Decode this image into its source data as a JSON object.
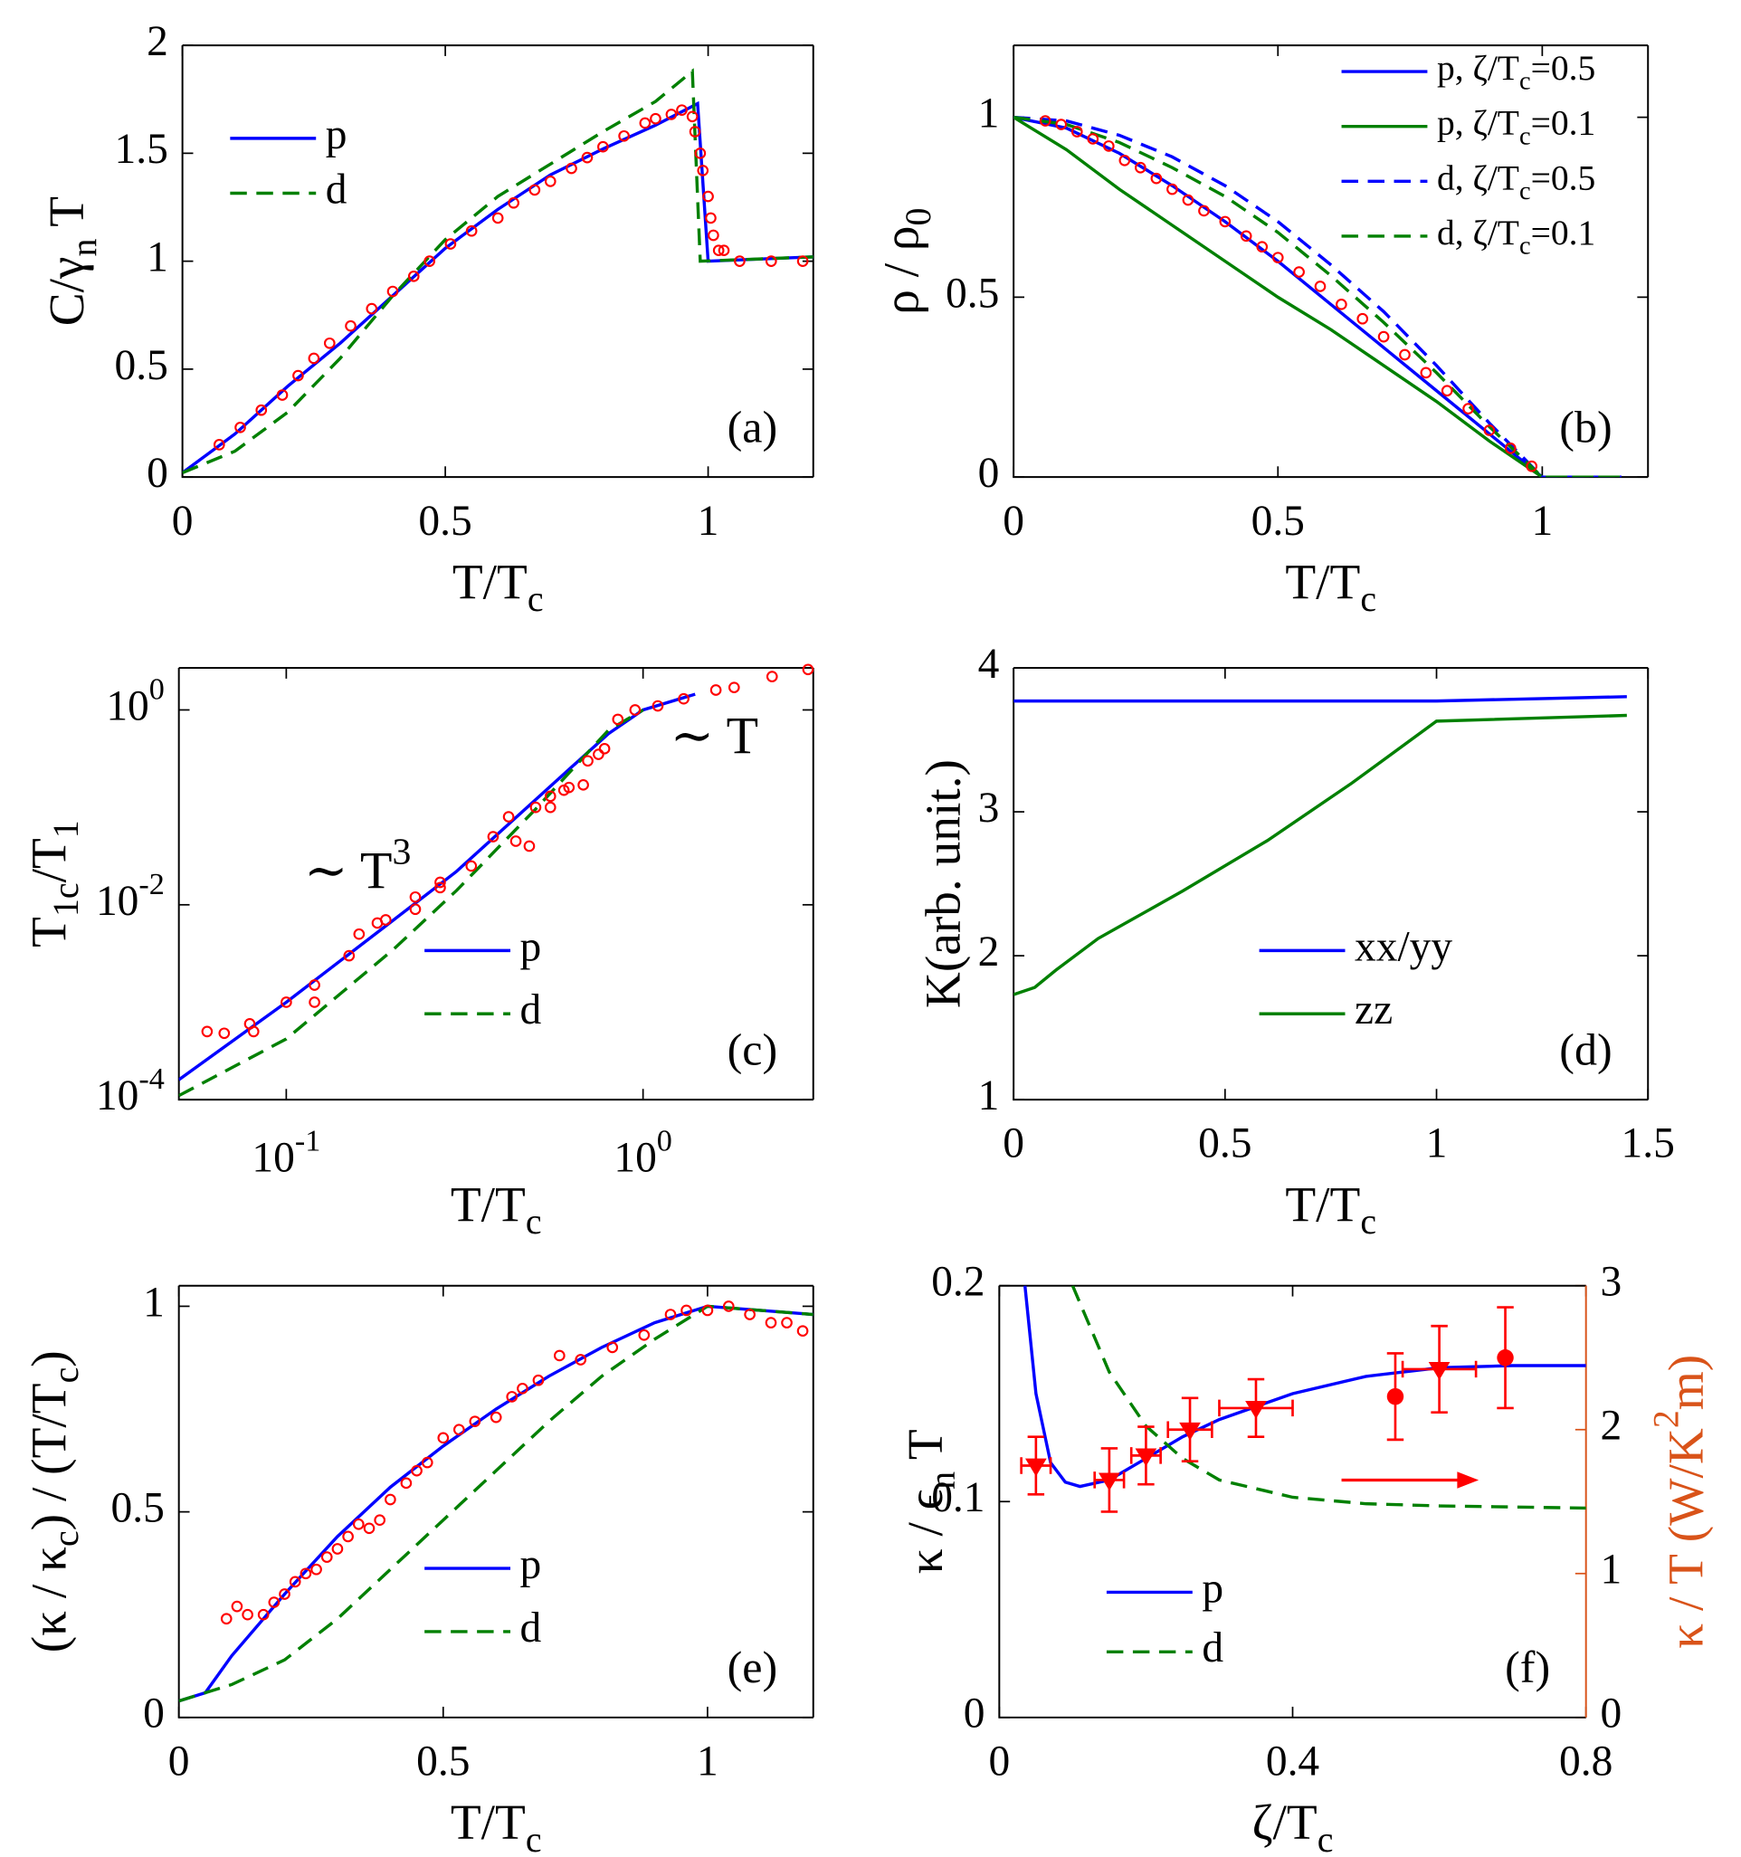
{
  "chart_data": [
    {
      "type": "line",
      "xlim": [
        0,
        1.2
      ],
      "ylim": [
        0,
        2
      ],
      "xticks": [
        0,
        0.5,
        1
      ],
      "yticks": [
        0,
        0.5,
        1,
        1.5,
        2
      ],
      "xlabel": [
        {
          "text": "T/T"
        },
        {
          "text": "c",
          "sub": true
        }
      ],
      "ylabel": [
        {
          "text": "C/γ"
        },
        {
          "text": "n",
          "sub": true
        },
        {
          "text": " T"
        }
      ],
      "panel_label": "(a)",
      "legend": "upper left",
      "series": [
        {
          "name": "p",
          "color": "#0000ff",
          "dash": "solid",
          "x": [
            0,
            0.1,
            0.2,
            0.3,
            0.4,
            0.5,
            0.6,
            0.7,
            0.8,
            0.9,
            0.98,
            1.0,
            1.2
          ],
          "values": [
            0.02,
            0.2,
            0.42,
            0.62,
            0.84,
            1.06,
            1.24,
            1.4,
            1.52,
            1.63,
            1.73,
            1.0,
            1.02
          ]
        },
        {
          "name": "d",
          "color": "#008000",
          "dash": "dashed",
          "x": [
            0,
            0.1,
            0.2,
            0.3,
            0.4,
            0.5,
            0.6,
            0.7,
            0.8,
            0.9,
            0.97,
            0.985,
            1.2
          ],
          "values": [
            0.02,
            0.12,
            0.3,
            0.55,
            0.84,
            1.1,
            1.3,
            1.45,
            1.6,
            1.74,
            1.88,
            1.0,
            1.02
          ]
        }
      ],
      "points": {
        "color": "#ff0000",
        "marker": "open-circle",
        "x": [
          0.07,
          0.11,
          0.15,
          0.19,
          0.22,
          0.25,
          0.28,
          0.32,
          0.36,
          0.4,
          0.44,
          0.47,
          0.51,
          0.55,
          0.6,
          0.63,
          0.67,
          0.7,
          0.74,
          0.77,
          0.8,
          0.84,
          0.88,
          0.9,
          0.93,
          0.95,
          0.97,
          0.975,
          0.985,
          0.99,
          1.0,
          1.005,
          1.01,
          1.02,
          1.03,
          1.06,
          1.12,
          1.18
        ],
        "y": [
          0.15,
          0.23,
          0.31,
          0.38,
          0.47,
          0.55,
          0.62,
          0.7,
          0.78,
          0.86,
          0.93,
          1.0,
          1.08,
          1.14,
          1.2,
          1.27,
          1.33,
          1.37,
          1.43,
          1.48,
          1.53,
          1.58,
          1.64,
          1.66,
          1.68,
          1.7,
          1.67,
          1.6,
          1.5,
          1.42,
          1.3,
          1.2,
          1.12,
          1.05,
          1.05,
          1.0,
          1.0,
          1.0
        ]
      }
    },
    {
      "type": "line",
      "xlim": [
        0,
        1.2
      ],
      "ylim": [
        0,
        1.2
      ],
      "xticks": [
        0,
        0.5,
        1
      ],
      "yticks": [
        0,
        0.5,
        1
      ],
      "xlabel": [
        {
          "text": "T/T"
        },
        {
          "text": "c",
          "sub": true
        }
      ],
      "ylabel": [
        {
          "text": "ρ / ρ"
        },
        {
          "text": "0",
          "sub": true
        }
      ],
      "panel_label": "(b)",
      "legend": "upper right",
      "series": [
        {
          "name": [
            {
              "text": "p, ζ/T"
            },
            {
              "text": "c",
              "sub": true
            },
            {
              "text": "=0.5"
            }
          ],
          "color": "#0000ff",
          "dash": "solid",
          "x": [
            0,
            0.1,
            0.2,
            0.3,
            0.4,
            0.5,
            0.6,
            0.7,
            0.8,
            0.9,
            1.0,
            1.15
          ],
          "values": [
            1,
            0.97,
            0.9,
            0.81,
            0.71,
            0.6,
            0.48,
            0.36,
            0.24,
            0.12,
            0.0,
            0.0
          ]
        },
        {
          "name": [
            {
              "text": "p, ζ/T"
            },
            {
              "text": "c",
              "sub": true
            },
            {
              "text": "=0.1"
            }
          ],
          "color": "#008000",
          "dash": "solid",
          "x": [
            0,
            0.1,
            0.2,
            0.3,
            0.4,
            0.5,
            0.6,
            0.7,
            0.8,
            0.9,
            1.0,
            1.15
          ],
          "values": [
            1,
            0.91,
            0.8,
            0.7,
            0.6,
            0.5,
            0.41,
            0.31,
            0.21,
            0.1,
            0,
            0
          ]
        },
        {
          "name": [
            {
              "text": "d, ζ/T"
            },
            {
              "text": "c",
              "sub": true
            },
            {
              "text": "=0.5"
            }
          ],
          "color": "#0000ff",
          "dash": "dashed",
          "x": [
            0,
            0.1,
            0.2,
            0.3,
            0.4,
            0.5,
            0.6,
            0.7,
            0.8,
            0.9,
            1.0,
            1.15
          ],
          "values": [
            1,
            0.99,
            0.95,
            0.89,
            0.81,
            0.71,
            0.59,
            0.46,
            0.31,
            0.15,
            0,
            0
          ]
        },
        {
          "name": [
            {
              "text": "d, ζ/T"
            },
            {
              "text": "c",
              "sub": true
            },
            {
              "text": "=0.1"
            }
          ],
          "color": "#008000",
          "dash": "dashed",
          "x": [
            0,
            0.1,
            0.2,
            0.3,
            0.4,
            0.5,
            0.6,
            0.7,
            0.8,
            0.9,
            1.0,
            1.15
          ],
          "values": [
            1,
            0.98,
            0.93,
            0.86,
            0.78,
            0.68,
            0.56,
            0.43,
            0.29,
            0.14,
            0,
            0
          ]
        }
      ],
      "points": {
        "color": "#ff0000",
        "marker": "open-circle",
        "x": [
          0.06,
          0.09,
          0.12,
          0.15,
          0.18,
          0.21,
          0.24,
          0.27,
          0.3,
          0.33,
          0.36,
          0.4,
          0.44,
          0.47,
          0.5,
          0.54,
          0.58,
          0.62,
          0.66,
          0.7,
          0.74,
          0.78,
          0.82,
          0.86,
          0.9,
          0.94,
          0.98
        ],
        "y": [
          0.99,
          0.98,
          0.96,
          0.94,
          0.92,
          0.88,
          0.86,
          0.83,
          0.8,
          0.77,
          0.74,
          0.71,
          0.67,
          0.64,
          0.61,
          0.57,
          0.53,
          0.48,
          0.44,
          0.39,
          0.34,
          0.29,
          0.24,
          0.19,
          0.13,
          0.08,
          0.03
        ]
      }
    },
    {
      "type": "line",
      "xscale": "log",
      "yscale": "log",
      "xlim": [
        0.05,
        3
      ],
      "ylim": [
        0.0001,
        2.7
      ],
      "xticks": [
        {
          "value": 0.1,
          "label": "10",
          "exp": "-1"
        },
        {
          "value": 1,
          "label": "10",
          "exp": "0"
        }
      ],
      "yticks": [
        {
          "value": 0.0001,
          "label": "10",
          "exp": "-4"
        },
        {
          "value": 0.01,
          "label": "10",
          "exp": "-2"
        },
        {
          "value": 1,
          "label": "10",
          "exp": "0"
        }
      ],
      "xlabel": [
        {
          "text": "T/T"
        },
        {
          "text": "c",
          "sub": true
        }
      ],
      "ylabel": [
        {
          "text": "T"
        },
        {
          "text": "1c",
          "sub": true
        },
        {
          "text": "/T"
        },
        {
          "text": "1",
          "sub": true
        }
      ],
      "panel_label": "(c)",
      "legend": "lower center",
      "annotations": [
        [
          {
            "text": "∼ T"
          },
          {
            "text": "3",
            "sup": true
          }
        ],
        [
          {
            "text": "∼ T"
          }
        ]
      ],
      "series": [
        {
          "name": "p",
          "color": "#0000ff",
          "dash": "solid",
          "x": [
            0.05,
            0.1,
            0.2,
            0.3,
            0.5,
            0.8,
            1,
            1.4
          ],
          "values": [
            0.00016,
            0.001,
            0.007,
            0.022,
            0.12,
            0.57,
            1,
            1.45
          ]
        },
        {
          "name": "d",
          "color": "#008000",
          "dash": "dashed",
          "x": [
            0.05,
            0.1,
            0.2,
            0.3,
            0.5,
            0.8,
            1
          ],
          "values": [
            0.00011,
            0.00042,
            0.0035,
            0.014,
            0.096,
            0.62,
            1
          ]
        }
      ],
      "points": {
        "color": "#ff0000",
        "marker": "open-circle",
        "x": [
          0.06,
          0.067,
          0.079,
          0.081,
          0.1,
          0.12,
          0.12,
          0.15,
          0.16,
          0.18,
          0.19,
          0.23,
          0.23,
          0.27,
          0.27,
          0.33,
          0.38,
          0.42,
          0.44,
          0.48,
          0.5,
          0.55,
          0.55,
          0.6,
          0.62,
          0.68,
          0.7,
          0.75,
          0.78,
          0.85,
          0.95,
          1.1,
          1.3,
          1.6,
          1.8,
          2.3,
          2.9
        ],
        "y": [
          0.0005,
          0.00048,
          0.0006,
          0.0005,
          0.001,
          0.0015,
          0.001,
          0.003,
          0.005,
          0.0065,
          0.007,
          0.012,
          0.009,
          0.017,
          0.015,
          0.025,
          0.05,
          0.08,
          0.045,
          0.04,
          0.1,
          0.13,
          0.1,
          0.15,
          0.16,
          0.17,
          0.3,
          0.35,
          0.4,
          0.8,
          1.0,
          1.1,
          1.3,
          1.6,
          1.7,
          2.2,
          2.6
        ]
      }
    },
    {
      "type": "line",
      "xlim": [
        0,
        1.5
      ],
      "ylim": [
        1,
        4
      ],
      "xticks": [
        0,
        0.5,
        1,
        1.5
      ],
      "yticks": [
        1,
        2,
        3,
        4
      ],
      "xlabel": [
        {
          "text": "T/T"
        },
        {
          "text": "c",
          "sub": true
        }
      ],
      "ylabel": "K(arb. unit.)",
      "panel_label": "(d)",
      "legend": "lower center",
      "series": [
        {
          "name": "xx/yy",
          "color": "#0000ff",
          "dash": "solid",
          "x": [
            0,
            1,
            1.45
          ],
          "values": [
            3.77,
            3.77,
            3.8
          ]
        },
        {
          "name": "zz",
          "color": "#008000",
          "dash": "solid",
          "x": [
            0,
            0.05,
            0.1,
            0.2,
            0.4,
            0.6,
            0.8,
            1,
            1.45
          ],
          "values": [
            1.73,
            1.78,
            1.9,
            2.12,
            2.45,
            2.8,
            3.2,
            3.63,
            3.67
          ]
        }
      ]
    },
    {
      "type": "line",
      "xlim": [
        0,
        1.2
      ],
      "ylim": [
        0,
        1.05
      ],
      "xticks": [
        0,
        0.5,
        1
      ],
      "yticks": [
        0,
        0.5,
        1
      ],
      "xlabel": [
        {
          "text": "T/T"
        },
        {
          "text": "c",
          "sub": true
        }
      ],
      "ylabel": [
        {
          "text": "(κ / κ"
        },
        {
          "text": "c",
          "sub": true
        },
        {
          "text": ") / (T/T"
        },
        {
          "text": "c",
          "sub": true
        },
        {
          "text": ")"
        }
      ],
      "panel_label": "(e)",
      "legend": "lower center",
      "series": [
        {
          "name": "p",
          "color": "#0000ff",
          "dash": "solid",
          "x": [
            0,
            0.05,
            0.1,
            0.2,
            0.3,
            0.4,
            0.5,
            0.6,
            0.7,
            0.8,
            0.9,
            1.0,
            1.2
          ],
          "values": [
            0.04,
            0.06,
            0.15,
            0.3,
            0.44,
            0.56,
            0.66,
            0.75,
            0.83,
            0.9,
            0.96,
            1.0,
            0.98
          ]
        },
        {
          "name": "d",
          "color": "#008000",
          "dash": "dashed",
          "x": [
            0,
            0.05,
            0.1,
            0.2,
            0.3,
            0.4,
            0.5,
            0.6,
            0.7,
            0.8,
            0.9,
            1.0,
            1.2
          ],
          "values": [
            0.04,
            0.06,
            0.08,
            0.14,
            0.24,
            0.36,
            0.48,
            0.6,
            0.72,
            0.83,
            0.92,
            1.0,
            0.98
          ]
        }
      ],
      "points": {
        "color": "#ff0000",
        "marker": "open-circle",
        "x": [
          0.09,
          0.11,
          0.13,
          0.16,
          0.18,
          0.2,
          0.22,
          0.24,
          0.26,
          0.28,
          0.3,
          0.32,
          0.34,
          0.36,
          0.38,
          0.4,
          0.43,
          0.45,
          0.47,
          0.5,
          0.53,
          0.56,
          0.6,
          0.63,
          0.65,
          0.68,
          0.72,
          0.76,
          0.82,
          0.88,
          0.93,
          0.96,
          1.0,
          1.04,
          1.08,
          1.12,
          1.15,
          1.18
        ],
        "y": [
          0.24,
          0.27,
          0.25,
          0.25,
          0.28,
          0.3,
          0.33,
          0.35,
          0.36,
          0.39,
          0.41,
          0.44,
          0.47,
          0.46,
          0.48,
          0.53,
          0.57,
          0.6,
          0.62,
          0.68,
          0.7,
          0.72,
          0.73,
          0.78,
          0.8,
          0.82,
          0.88,
          0.87,
          0.9,
          0.93,
          0.98,
          0.99,
          0.99,
          1.0,
          0.98,
          0.96,
          0.96,
          0.94
        ]
      }
    },
    {
      "type": "line",
      "xlim": [
        0,
        0.8
      ],
      "ylim": [
        0,
        0.2
      ],
      "y2lim": [
        0,
        3
      ],
      "xticks": [
        0,
        0.4,
        0.8
      ],
      "yticks": [
        0,
        0.1,
        0.2
      ],
      "y2ticks": [
        0,
        1,
        2,
        3
      ],
      "y2color": "#d95319",
      "xlabel": [
        {
          "text": "ζ/T"
        },
        {
          "text": "c",
          "sub": true
        }
      ],
      "ylabel": [
        {
          "text": "κ / ϵ"
        },
        {
          "text": "n",
          "sub": true
        },
        {
          "text": " T"
        }
      ],
      "y2label": [
        {
          "text": "κ / T (W/K"
        },
        {
          "text": "2",
          "sup": true
        },
        {
          "text": "m)"
        }
      ],
      "panel_label": "(f)",
      "legend": "lower left",
      "series": [
        {
          "name": "p",
          "color": "#0000ff",
          "dash": "solid",
          "x": [
            0.035,
            0.05,
            0.07,
            0.09,
            0.11,
            0.15,
            0.2,
            0.25,
            0.3,
            0.4,
            0.5,
            0.6,
            0.7,
            0.8
          ],
          "values": [
            0.2,
            0.15,
            0.118,
            0.109,
            0.107,
            0.11,
            0.12,
            0.13,
            0.138,
            0.15,
            0.158,
            0.162,
            0.163,
            0.163
          ]
        },
        {
          "name": "d",
          "color": "#008000",
          "dash": "dashed",
          "x": [
            0.1,
            0.15,
            0.2,
            0.25,
            0.3,
            0.4,
            0.5,
            0.6,
            0.8
          ],
          "values": [
            0.2,
            0.16,
            0.135,
            0.12,
            0.11,
            0.102,
            0.099,
            0.098,
            0.097
          ]
        }
      ],
      "points": {
        "axis": "y2",
        "color": "#ff0000",
        "marker": [
          "triangle-down",
          "triangle-down",
          "triangle-down",
          "triangle-down",
          "triangle-down",
          "circle",
          "triangle-down",
          "circle"
        ],
        "x": [
          0.05,
          0.15,
          0.2,
          0.26,
          0.35,
          0.54,
          0.6,
          0.69
        ],
        "y": [
          1.75,
          1.65,
          1.82,
          2.0,
          2.15,
          2.23,
          2.42,
          2.5
        ],
        "yerr": [
          0.2,
          0.22,
          0.2,
          0.22,
          0.2,
          0.3,
          0.3,
          0.35
        ],
        "xerr": [
          0.02,
          0.02,
          0.02,
          0.03,
          0.05,
          null,
          0.05,
          null
        ]
      }
    }
  ]
}
